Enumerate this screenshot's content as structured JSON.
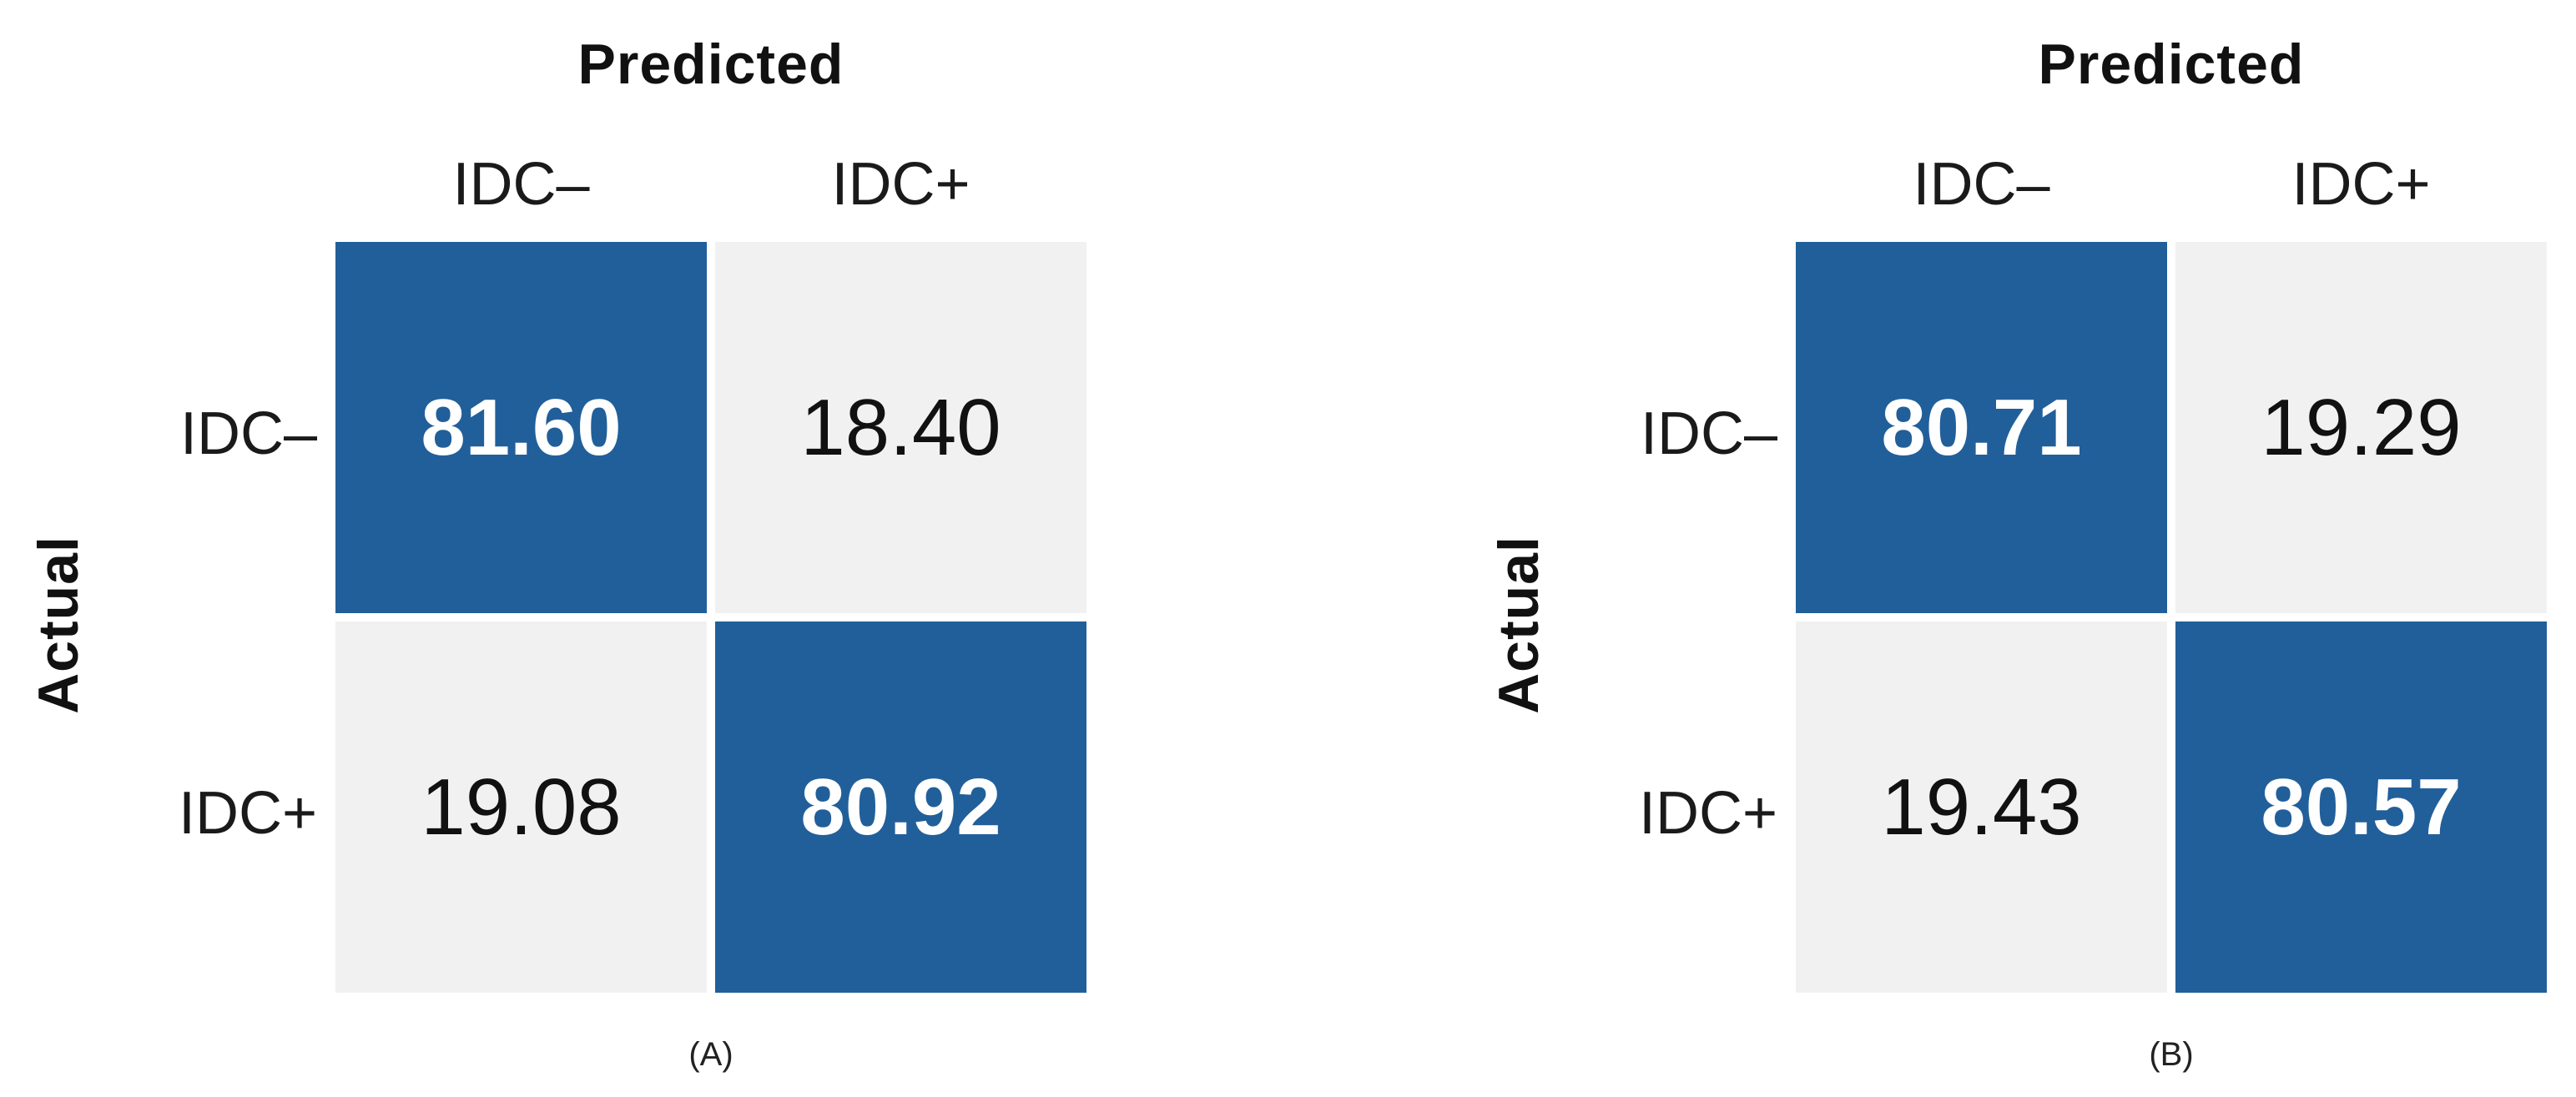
{
  "chart_data": [
    {
      "type": "heatmap",
      "title": "Predicted",
      "ylabel": "Actual",
      "x_categories": [
        "IDC–",
        "IDC+"
      ],
      "y_categories": [
        "IDC–",
        "IDC+"
      ],
      "values": [
        [
          81.6,
          18.4
        ],
        [
          19.08,
          80.92
        ]
      ],
      "labels": [
        [
          "81.60",
          "18.40"
        ],
        [
          "19.08",
          "80.92"
        ]
      ],
      "caption": "(A)",
      "colors": {
        "high": "#215f9a",
        "low": "#f1f1f1"
      }
    },
    {
      "type": "heatmap",
      "title": "Predicted",
      "ylabel": "Actual",
      "x_categories": [
        "IDC–",
        "IDC+"
      ],
      "y_categories": [
        "IDC–",
        "IDC+"
      ],
      "values": [
        [
          80.71,
          19.29
        ],
        [
          19.43,
          80.57
        ]
      ],
      "labels": [
        [
          "80.71",
          "19.29"
        ],
        [
          "19.43",
          "80.57"
        ]
      ],
      "caption": "(B)",
      "colors": {
        "high": "#215f9a",
        "low": "#f1f1f1"
      }
    }
  ]
}
